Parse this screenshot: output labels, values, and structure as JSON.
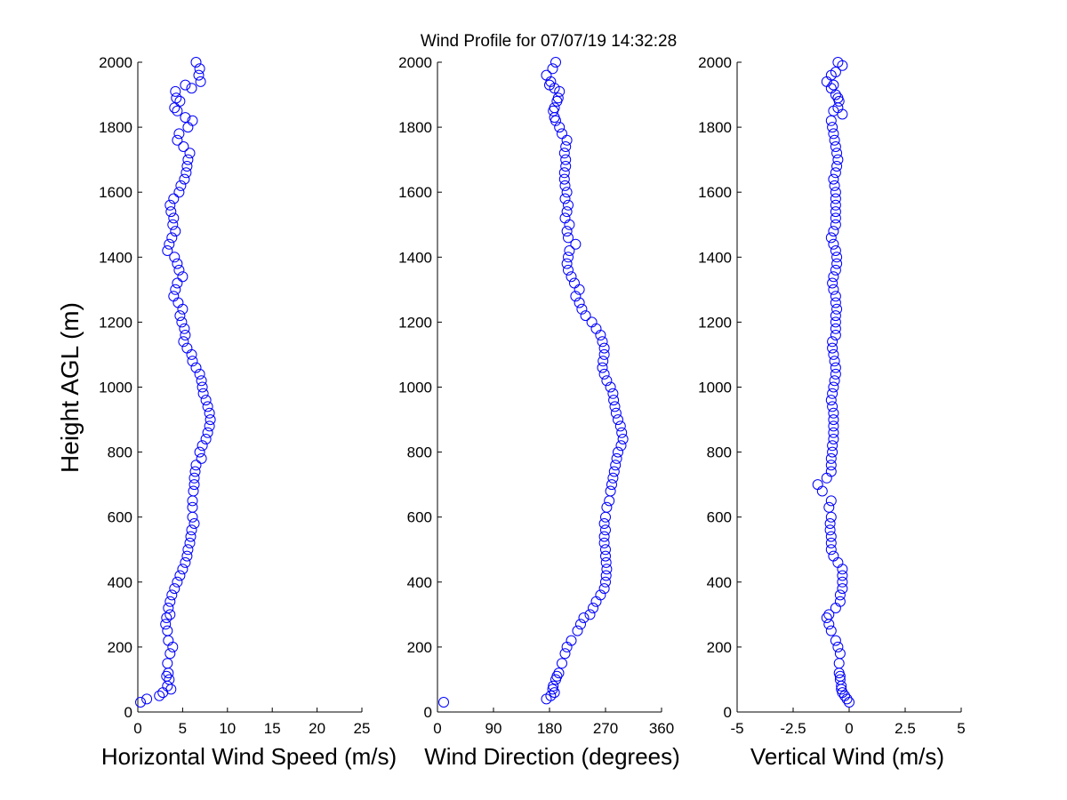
{
  "chart_data": {
    "type": "scatter",
    "title": "Wind Profile for  07/07/19 14:32:28",
    "ylabel": "Height AGL (m)",
    "ylim": [
      0,
      2000
    ],
    "y_ticks": [
      "0",
      "200",
      "400",
      "600",
      "800",
      "1000",
      "1200",
      "1400",
      "1600",
      "1800",
      "2000"
    ],
    "marker_color": "#0000ff",
    "panels": [
      {
        "name": "speed",
        "xlabel": "Horizontal Wind Speed (m/s)",
        "xlim": [
          0,
          25
        ],
        "x_tick_values": [
          0,
          5,
          10,
          15,
          20,
          25
        ],
        "x_ticks": [
          "0",
          "5",
          "10",
          "15",
          "20",
          "25"
        ],
        "x": [
          0.3,
          1,
          2.4,
          2.8,
          3.7,
          3.3,
          3.5,
          3.2,
          3.4,
          3.3,
          3.6,
          3.9,
          3.4,
          3.3,
          3.1,
          3.2,
          3.6,
          3.4,
          3.6,
          3.8,
          4.1,
          4.4,
          4.7,
          5.0,
          5.3,
          5.5,
          5.6,
          5.8,
          5.9,
          6.0,
          6.3,
          6.1,
          6.1,
          6.1,
          6.2,
          6.3,
          6.3,
          6.4,
          6.5,
          7.1,
          6.9,
          7.2,
          7.6,
          7.8,
          8.0,
          8.1,
          8.0,
          7.8,
          7.6,
          7.3,
          7.2,
          7.1,
          6.9,
          6.5,
          6.1,
          6.0,
          5.5,
          5.1,
          5.3,
          5.2,
          4.9,
          4.7,
          5.0,
          4.5,
          4.0,
          4.2,
          4.4,
          5.0,
          4.6,
          4.4,
          4.1,
          3.3,
          3.5,
          3.8,
          4.2,
          3.9,
          4.0,
          3.7,
          3.6,
          4.0,
          4.6,
          4.8,
          5.2,
          5.4,
          5.5,
          5.6,
          5.8,
          5.1,
          4.4,
          4.6,
          5.6,
          6.1,
          5.3,
          4.4,
          4.1,
          4.7,
          4.3,
          4.2,
          6.0,
          5.3,
          7.0,
          6.8,
          6.9,
          6.5
        ],
        "y": [
          30,
          40,
          50,
          60,
          70,
          80,
          100,
          110,
          120,
          150,
          180,
          200,
          220,
          250,
          270,
          290,
          300,
          320,
          340,
          360,
          380,
          400,
          420,
          440,
          460,
          480,
          500,
          520,
          540,
          560,
          580,
          600,
          630,
          650,
          680,
          700,
          720,
          740,
          760,
          780,
          800,
          820,
          840,
          860,
          880,
          900,
          920,
          940,
          960,
          980,
          1000,
          1020,
          1040,
          1060,
          1080,
          1100,
          1120,
          1140,
          1160,
          1180,
          1200,
          1220,
          1240,
          1260,
          1280,
          1300,
          1320,
          1340,
          1360,
          1380,
          1400,
          1420,
          1440,
          1460,
          1480,
          1500,
          1520,
          1540,
          1560,
          1580,
          1600,
          1620,
          1640,
          1660,
          1680,
          1700,
          1720,
          1740,
          1760,
          1780,
          1800,
          1820,
          1830,
          1850,
          1860,
          1880,
          1890,
          1910,
          1920,
          1930,
          1940,
          1960,
          1980,
          2000
        ]
      },
      {
        "name": "direction",
        "xlabel": "Wind Direction (degrees)",
        "xlim": [
          0,
          360
        ],
        "x_tick_values": [
          0,
          90,
          180,
          270,
          360
        ],
        "x_ticks": [
          "0",
          "90",
          "180",
          "270",
          "360"
        ],
        "x": [
          10,
          175,
          182,
          188,
          185,
          186,
          190,
          192,
          195,
          200,
          205,
          208,
          215,
          225,
          230,
          235,
          245,
          250,
          255,
          262,
          268,
          270,
          271,
          272,
          271,
          270,
          270,
          268,
          268,
          270,
          268,
          270,
          272,
          276,
          278,
          280,
          282,
          284,
          286,
          288,
          290,
          295,
          298,
          296,
          294,
          290,
          287,
          285,
          283,
          282,
          278,
          272,
          268,
          265,
          266,
          268,
          268,
          265,
          262,
          255,
          248,
          238,
          232,
          228,
          222,
          228,
          220,
          215,
          210,
          208,
          210,
          212,
          222,
          210,
          208,
          212,
          205,
          208,
          210,
          205,
          208,
          205,
          204,
          204,
          206,
          206,
          204,
          206,
          208,
          200,
          196,
          190,
          188,
          186,
          188,
          192,
          194,
          196,
          188,
          180,
          182,
          175,
          185,
          190
        ],
        "y": [
          30,
          40,
          50,
          60,
          70,
          80,
          100,
          110,
          120,
          150,
          180,
          200,
          220,
          250,
          270,
          290,
          300,
          320,
          340,
          360,
          380,
          400,
          420,
          440,
          460,
          480,
          500,
          520,
          540,
          560,
          580,
          600,
          630,
          650,
          680,
          700,
          720,
          740,
          760,
          780,
          800,
          820,
          840,
          860,
          880,
          900,
          920,
          940,
          960,
          980,
          1000,
          1020,
          1040,
          1060,
          1080,
          1100,
          1120,
          1140,
          1160,
          1180,
          1200,
          1220,
          1240,
          1260,
          1280,
          1300,
          1320,
          1340,
          1360,
          1380,
          1400,
          1420,
          1440,
          1460,
          1480,
          1500,
          1520,
          1540,
          1560,
          1580,
          1600,
          1620,
          1640,
          1660,
          1680,
          1700,
          1720,
          1740,
          1760,
          1780,
          1800,
          1820,
          1830,
          1850,
          1860,
          1880,
          1890,
          1910,
          1920,
          1930,
          1940,
          1960,
          1980,
          2000
        ]
      },
      {
        "name": "vertical",
        "xlabel": "Vertical Wind (m/s)",
        "xlim": [
          -5,
          5
        ],
        "x_tick_values": [
          -5,
          -2.5,
          0,
          2.5,
          5
        ],
        "x_ticks": [
          "-5",
          "-2.5",
          "0",
          "2.5",
          "5"
        ],
        "x": [
          0.0,
          -0.1,
          -0.2,
          -0.3,
          -0.35,
          -0.35,
          -0.4,
          -0.4,
          -0.45,
          -0.45,
          -0.4,
          -0.5,
          -0.6,
          -0.8,
          -0.9,
          -1.0,
          -0.9,
          -0.6,
          -0.4,
          -0.4,
          -0.3,
          -0.3,
          -0.3,
          -0.3,
          -0.5,
          -0.7,
          -0.8,
          -0.8,
          -0.8,
          -0.85,
          -0.85,
          -0.8,
          -0.9,
          -0.8,
          -1.2,
          -1.4,
          -1.0,
          -0.8,
          -0.8,
          -0.8,
          -0.75,
          -0.75,
          -0.7,
          -0.7,
          -0.7,
          -0.7,
          -0.7,
          -0.75,
          -0.8,
          -0.75,
          -0.7,
          -0.65,
          -0.6,
          -0.6,
          -0.65,
          -0.7,
          -0.75,
          -0.75,
          -0.6,
          -0.6,
          -0.6,
          -0.6,
          -0.55,
          -0.6,
          -0.6,
          -0.7,
          -0.75,
          -0.7,
          -0.6,
          -0.55,
          -0.55,
          -0.6,
          -0.7,
          -0.8,
          -0.7,
          -0.6,
          -0.6,
          -0.6,
          -0.6,
          -0.6,
          -0.6,
          -0.65,
          -0.7,
          -0.6,
          -0.55,
          -0.5,
          -0.55,
          -0.6,
          -0.65,
          -0.7,
          -0.75,
          -0.8,
          -0.3,
          -0.7,
          -0.5,
          -0.45,
          -0.5,
          -0.6,
          -0.8,
          -0.7,
          -1.0,
          -0.8,
          -0.6,
          -0.3,
          -0.5
        ],
        "y": [
          30,
          40,
          50,
          60,
          70,
          80,
          100,
          110,
          120,
          150,
          180,
          200,
          220,
          250,
          270,
          290,
          300,
          320,
          340,
          360,
          380,
          400,
          420,
          440,
          460,
          480,
          500,
          520,
          540,
          560,
          580,
          600,
          630,
          650,
          680,
          700,
          720,
          740,
          760,
          780,
          800,
          820,
          840,
          860,
          880,
          900,
          920,
          940,
          960,
          980,
          1000,
          1020,
          1040,
          1060,
          1080,
          1100,
          1120,
          1140,
          1160,
          1180,
          1200,
          1220,
          1240,
          1260,
          1280,
          1300,
          1320,
          1340,
          1360,
          1380,
          1400,
          1420,
          1440,
          1460,
          1480,
          1500,
          1520,
          1540,
          1560,
          1580,
          1600,
          1620,
          1640,
          1660,
          1680,
          1700,
          1720,
          1740,
          1760,
          1780,
          1800,
          1820,
          1840,
          1850,
          1860,
          1880,
          1890,
          1900,
          1920,
          1930,
          1940,
          1960,
          1970,
          1990,
          2000
        ]
      }
    ]
  }
}
